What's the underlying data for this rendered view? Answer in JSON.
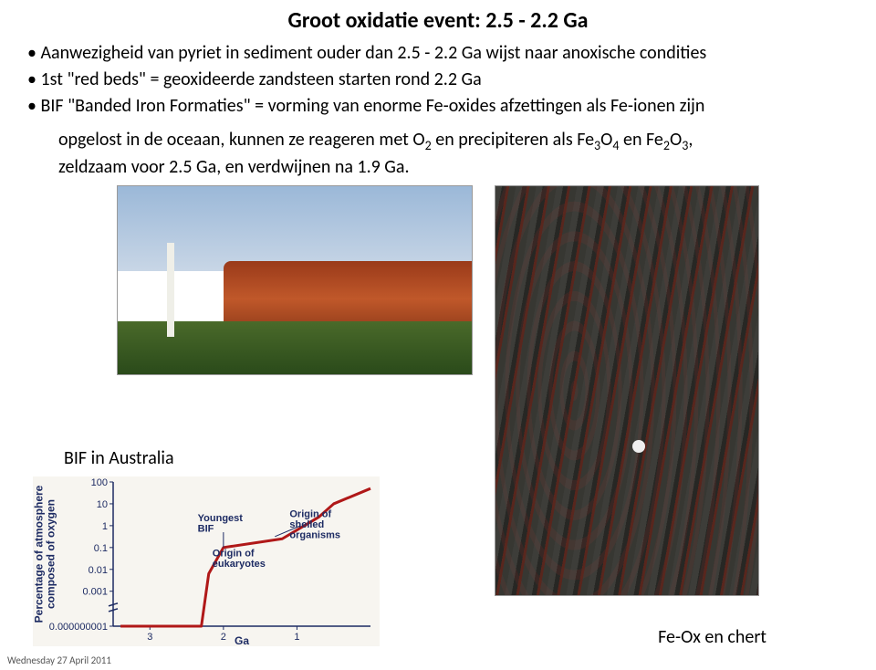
{
  "title": "Groot oxidatie event: 2.5 - 2.2 Ga",
  "bullets": {
    "b1": "Aanwezigheid van pyriet in sediment ouder dan 2.5 - 2.2 Ga wijst naar anoxische condities",
    "b2": "1st \"red beds\" = geoxideerde zandsteen starten rond 2.2 Ga",
    "b3a": "BIF \"Banded Iron Formaties\" = vorming van enorme Fe-oxides afzettingen als Fe-ionen zijn",
    "b3b_pre": "opgelost in de oceaan, kunnen ze reageren met O",
    "b3b_mid": " en precipiteren als Fe",
    "b3b_mid2": "O",
    "b3b_mid3": " en Fe",
    "b3b_mid4": "O",
    "b3b_post": ",",
    "b3c": "zeldzaam voor 2.5 Ga, en verdwijnen na 1.9 Ga."
  },
  "bif_label": "BIF in Australia",
  "caption_right": "Fe-Ox en chert",
  "footer": "Wednesday 27 April 2011",
  "chart": {
    "type": "line",
    "background_color": "#f7f5f0",
    "line_color": "#b01818",
    "line_width": 3,
    "axis_color": "#1d2b63",
    "y_label": "Percentage of atmosphere\ncomposed of oxygen",
    "x_label": "Ga",
    "y_ticks": [
      "100",
      "10",
      "1",
      "0.1",
      "0.01",
      "0.001",
      "0.000000001"
    ],
    "x_ticks": [
      "3",
      "2",
      "1"
    ],
    "annotations": {
      "youngest_bif": "Youngest\nBIF",
      "origin_euk": "Origin of\neukaryotes",
      "origin_shell": "Origin of\nshelled\norganisms"
    },
    "points": [
      {
        "ga": 3.4,
        "yidx": 6.0
      },
      {
        "ga": 2.3,
        "yidx": 6.0
      },
      {
        "ga": 2.2,
        "yidx": 4.2
      },
      {
        "ga": 2.0,
        "yidx": 3.0
      },
      {
        "ga": 1.2,
        "yidx": 2.6
      },
      {
        "ga": 0.7,
        "yidx": 1.6
      },
      {
        "ga": 0.5,
        "yidx": 1.0
      },
      {
        "ga": 0.0,
        "yidx": 0.3
      }
    ]
  }
}
